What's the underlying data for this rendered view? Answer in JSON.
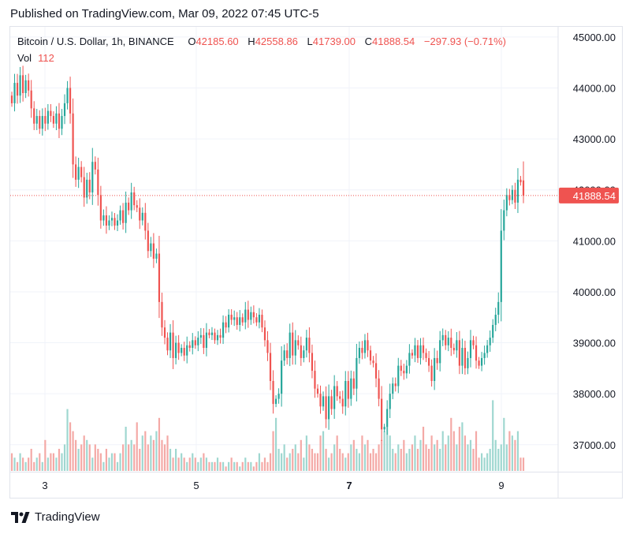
{
  "header": {
    "published": "Published on TradingView.com, Mar 09, 2022 07:45 UTC-5"
  },
  "legend": {
    "symbol": "Bitcoin / U.S. Dollar, 1h, BINANCE",
    "o_label": "O",
    "o_value": "42185.60",
    "h_label": "H",
    "h_value": "42558.86",
    "l_label": "L",
    "l_value": "41739.00",
    "c_label": "C",
    "c_value": "41888.54",
    "change": "−297.93 (−0.71%)",
    "vol_label": "Vol",
    "vol_value": "112"
  },
  "brand": {
    "name": "TradingView"
  },
  "colors": {
    "up": "#26a69a",
    "down": "#ef5350",
    "up_vol": "#9fd7d0",
    "down_vol": "#f4a9a6",
    "grid": "#f0f3fa",
    "axis_text": "#131722"
  },
  "chart_data": {
    "type": "candlestick",
    "title": "Bitcoin / U.S. Dollar, 1h, BINANCE",
    "x_ticks": [
      "3",
      "5",
      "7",
      "9"
    ],
    "y_ticks": [
      "45000.00",
      "44000.00",
      "43000.00",
      "42000.00",
      "41000.00",
      "40000.00",
      "39000.00",
      "38000.00",
      "37000.00"
    ],
    "ylim": [
      36470,
      45200
    ],
    "last_price": "41888.54",
    "grid": true,
    "close_path": [
      43700,
      44100,
      43850,
      44250,
      43900,
      44150,
      43950,
      43600,
      43300,
      43450,
      43200,
      43450,
      43300,
      43550,
      43450,
      43300,
      43500,
      43200,
      43450,
      43700,
      44000,
      43500,
      42500,
      42200,
      42450,
      42250,
      41850,
      42200,
      41950,
      42550,
      42400,
      41900,
      41400,
      41500,
      41300,
      41400,
      41450,
      41300,
      41400,
      41600,
      41350,
      41750,
      41600,
      41950,
      41700,
      41650,
      41400,
      41550,
      41200,
      40800,
      40950,
      40650,
      40750,
      39800,
      39300,
      39100,
      38850,
      39200,
      38700,
      39000,
      38800,
      38900,
      38750,
      38950,
      38900,
      39050,
      38950,
      39100,
      39150,
      38900,
      39200,
      39150,
      39200,
      39050,
      39150,
      39100,
      39400,
      39300,
      39550,
      39450,
      39500,
      39350,
      39500,
      39400,
      39650,
      39450,
      39600,
      39500,
      39400,
      39550,
      39300,
      39050,
      38800,
      38250,
      37800,
      37900,
      38000,
      38650,
      38850,
      38700,
      39200,
      38750,
      39050,
      38950,
      38700,
      38850,
      39100,
      38800,
      38450,
      38100,
      38000,
      37750,
      37950,
      37500,
      37950,
      37700,
      38150,
      37950,
      37900,
      37750,
      38250,
      37900,
      38300,
      38100,
      38700,
      38900,
      38800,
      39050,
      38850,
      38650,
      38600,
      38300,
      37900,
      37300,
      37350,
      37700,
      38000,
      38200,
      38150,
      38550,
      38450,
      38400,
      38550,
      38800,
      38750,
      38950,
      38700,
      38950,
      38800,
      38700,
      38550,
      38250,
      38700,
      38600,
      39050,
      39150,
      38950,
      39100,
      38900,
      38850,
      39050,
      38550,
      38900,
      38500,
      38700,
      39050,
      38950,
      38650,
      38550,
      38700,
      38800,
      38950,
      39100,
      39350,
      39550,
      39800,
      41200,
      41600,
      41900,
      41800,
      42000,
      41750,
      42200,
      42150,
      41888.54
    ],
    "volume_levels": [
      4,
      3,
      2,
      4,
      3,
      2,
      3,
      5,
      2,
      3,
      4,
      2,
      7,
      3,
      4,
      4,
      3,
      5,
      4,
      6,
      14,
      11,
      9,
      7,
      5,
      6,
      8,
      7,
      6,
      3,
      6,
      5,
      4,
      2,
      5,
      3,
      4,
      4,
      2,
      4,
      6,
      10,
      6,
      7,
      6,
      11,
      5,
      8,
      9,
      6,
      8,
      7,
      9,
      12,
      7,
      6,
      8,
      5,
      3,
      5,
      3,
      4,
      3,
      2,
      3,
      4,
      3,
      2,
      3,
      4,
      3,
      2,
      2,
      2,
      3,
      2,
      2,
      1,
      2,
      3,
      2,
      2,
      1,
      2,
      3,
      2,
      2,
      1,
      2,
      4,
      2,
      3,
      2,
      4,
      9,
      12,
      5,
      4,
      6,
      3,
      4,
      5,
      6,
      4,
      7,
      3,
      8,
      6,
      5,
      4,
      4,
      8,
      9,
      5,
      3,
      4,
      6,
      8,
      5,
      4,
      3,
      4,
      6,
      7,
      5,
      4,
      8,
      6,
      7,
      4,
      5,
      4,
      6,
      7,
      9,
      10,
      8,
      5,
      4,
      6,
      5,
      7,
      4,
      5,
      6,
      8,
      5,
      7,
      10,
      6,
      5,
      8,
      6,
      7,
      5,
      9,
      6,
      8,
      12,
      9,
      6,
      10,
      11,
      8,
      6,
      7,
      5,
      9,
      3,
      4,
      3,
      4,
      5,
      16,
      7,
      5,
      6,
      12,
      6,
      9,
      8,
      7,
      9
    ]
  }
}
